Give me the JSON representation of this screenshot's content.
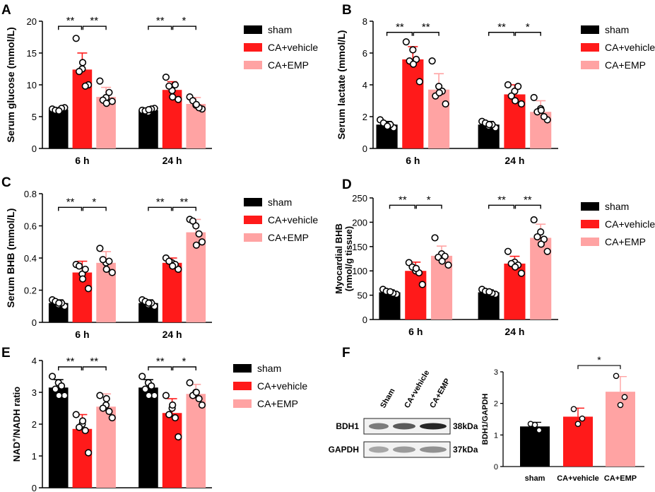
{
  "colors": {
    "sham": "#000000",
    "vehicle": "#ff1a1a",
    "emp": "#ffa3a3",
    "axis": "#000000"
  },
  "legend": [
    "sham",
    "CA+vehicle",
    "CA+EMP"
  ],
  "panels": [
    {
      "letter": "A",
      "chart_data": {
        "type": "bar",
        "ylabel": "Serum glucose (mmol/L)",
        "categories": [
          "6 h",
          "24 h"
        ],
        "ylim": [
          0,
          20
        ],
        "yticks": [
          0,
          5,
          10,
          15,
          20
        ],
        "series": [
          {
            "name": "sham",
            "values": [
              6.1,
              6.0
            ],
            "errors": [
              0.3,
              0.3
            ],
            "points": [
              [
                6.2,
                5.8,
                6.4,
                6.0,
                6.3,
                5.9
              ],
              [
                6.0,
                5.7,
                6.3,
                5.9,
                6.2,
                6.1
              ]
            ]
          },
          {
            "name": "CA+vehicle",
            "values": [
              12.4,
              9.2
            ],
            "errors": [
              2.6,
              1.3
            ],
            "points": [
              [
                17.3,
                12.5,
                10.0,
                12.1,
                9.8,
                13.5
              ],
              [
                11.2,
                9.1,
                7.7,
                9.8,
                10.0,
                8.1
              ]
            ]
          },
          {
            "name": "CA+EMP",
            "values": [
              8.1,
              7.0
            ],
            "errors": [
              1.5,
              1.0
            ],
            "points": [
              [
                10.6,
                8.0,
                7.4,
                7.6,
                8.8,
                7.1
              ],
              [
                8.1,
                6.8,
                6.2,
                7.5,
                6.4,
                6.9
              ]
            ]
          }
        ],
        "significance": [
          {
            "group": 0,
            "from": 0,
            "to": 1,
            "label": "**",
            "y": 19.2
          },
          {
            "group": 0,
            "from": 1,
            "to": 2,
            "label": "**",
            "y": 19.2
          },
          {
            "group": 1,
            "from": 0,
            "to": 1,
            "label": "**",
            "y": 19.2
          },
          {
            "group": 1,
            "from": 1,
            "to": 2,
            "label": "*",
            "y": 19.2
          }
        ]
      }
    },
    {
      "letter": "B",
      "chart_data": {
        "type": "bar",
        "ylabel": "Serum lactate (mmol/L)",
        "categories": [
          "6 h",
          "24 h"
        ],
        "ylim": [
          0,
          8
        ],
        "yticks": [
          0,
          2,
          4,
          6,
          8
        ],
        "series": [
          {
            "name": "sham",
            "values": [
              1.5,
              1.5
            ],
            "errors": [
              0.2,
              0.2
            ],
            "points": [
              [
                1.8,
                1.4,
                1.3,
                1.6,
                1.5,
                1.4
              ],
              [
                1.7,
                1.4,
                1.3,
                1.6,
                1.5,
                1.5
              ]
            ]
          },
          {
            "name": "CA+vehicle",
            "values": [
              5.6,
              3.4
            ],
            "errors": [
              0.8,
              0.6
            ],
            "points": [
              [
                6.7,
                6.2,
                4.2,
                5.5,
                5.6,
                5.3
              ],
              [
                4.0,
                3.6,
                2.8,
                3.3,
                3.9,
                3.0
              ]
            ]
          },
          {
            "name": "CA+EMP",
            "values": [
              3.7,
              2.3
            ],
            "errors": [
              1.0,
              0.7
            ],
            "points": [
              [
                5.5,
                3.9,
                2.8,
                3.3,
                3.6,
                3.5
              ],
              [
                3.2,
                2.5,
                1.8,
                2.3,
                2.0,
                2.4
              ]
            ]
          }
        ],
        "significance": [
          {
            "group": 0,
            "from": 0,
            "to": 1,
            "label": "**",
            "y": 7.3
          },
          {
            "group": 0,
            "from": 1,
            "to": 2,
            "label": "**",
            "y": 7.3
          },
          {
            "group": 1,
            "from": 0,
            "to": 1,
            "label": "**",
            "y": 7.3
          },
          {
            "group": 1,
            "from": 1,
            "to": 2,
            "label": "*",
            "y": 7.3
          }
        ]
      }
    },
    {
      "letter": "C",
      "chart_data": {
        "type": "bar",
        "ylabel": "Serum BHB (mmol/L)",
        "categories": [
          "6 h",
          "24 h"
        ],
        "ylim": [
          0,
          0.8
        ],
        "yticks": [
          0,
          0.2,
          0.4,
          0.6,
          0.8
        ],
        "series": [
          {
            "name": "sham",
            "values": [
              0.12,
              0.12
            ],
            "errors": [
              0.02,
              0.02
            ],
            "points": [
              [
                0.14,
                0.11,
                0.1,
                0.13,
                0.12,
                0.12
              ],
              [
                0.14,
                0.11,
                0.1,
                0.13,
                0.12,
                0.12
              ]
            ]
          },
          {
            "name": "CA+vehicle",
            "values": [
              0.31,
              0.37
            ],
            "errors": [
              0.07,
              0.03
            ],
            "points": [
              [
                0.36,
                0.3,
                0.21,
                0.35,
                0.33,
                0.27
              ],
              [
                0.4,
                0.37,
                0.33,
                0.38,
                0.36,
                0.35
              ]
            ]
          },
          {
            "name": "CA+EMP",
            "values": [
              0.37,
              0.56
            ],
            "errors": [
              0.07,
              0.08
            ],
            "points": [
              [
                0.46,
                0.37,
                0.31,
                0.39,
                0.38,
                0.33
              ],
              [
                0.64,
                0.6,
                0.5,
                0.63,
                0.55,
                0.48
              ]
            ]
          }
        ],
        "significance": [
          {
            "group": 0,
            "from": 0,
            "to": 1,
            "label": "**",
            "y": 0.715
          },
          {
            "group": 0,
            "from": 1,
            "to": 2,
            "label": "*",
            "y": 0.715
          },
          {
            "group": 1,
            "from": 0,
            "to": 1,
            "label": "**",
            "y": 0.715
          },
          {
            "group": 1,
            "from": 1,
            "to": 2,
            "label": "**",
            "y": 0.715
          }
        ]
      }
    },
    {
      "letter": "D",
      "chart_data": {
        "type": "bar",
        "ylabel": "Myocardial BHB",
        "ylabel2": "(nmol/g tissue)",
        "categories": [
          "6 h",
          "24 h"
        ],
        "ylim": [
          0,
          250
        ],
        "yticks": [
          0,
          50,
          100,
          150,
          200,
          250
        ],
        "series": [
          {
            "name": "sham",
            "values": [
              56,
              56
            ],
            "errors": [
              5,
              5
            ],
            "points": [
              [
                62,
                55,
                52,
                58,
                54,
                57
              ],
              [
                62,
                55,
                52,
                58,
                54,
                57
              ]
            ]
          },
          {
            "name": "CA+vehicle",
            "values": [
              100,
              115
            ],
            "errors": [
              18,
              15
            ],
            "points": [
              [
                117,
                100,
                72,
                108,
                96,
                105
              ],
              [
                140,
                118,
                95,
                115,
                112,
                108
              ]
            ]
          },
          {
            "name": "CA+EMP",
            "values": [
              131,
              168
            ],
            "errors": [
              20,
              28
            ],
            "points": [
              [
                168,
                135,
                112,
                128,
                130,
                120
              ],
              [
                205,
                180,
                140,
                170,
                165,
                155
              ]
            ]
          }
        ],
        "significance": [
          {
            "group": 0,
            "from": 0,
            "to": 1,
            "label": "**",
            "y": 235
          },
          {
            "group": 0,
            "from": 1,
            "to": 2,
            "label": "*",
            "y": 235
          },
          {
            "group": 1,
            "from": 0,
            "to": 1,
            "label": "**",
            "y": 235
          },
          {
            "group": 1,
            "from": 1,
            "to": 2,
            "label": "**",
            "y": 235
          }
        ]
      }
    },
    {
      "letter": "E",
      "chart_data": {
        "type": "bar",
        "ylabel": "NAD",
        "ylabel_sup": "+",
        "ylabel_rest": "/NADH ratio",
        "categories": [
          "6 h",
          "24 h"
        ],
        "ylim": [
          0,
          4
        ],
        "yticks": [
          0,
          1,
          2,
          3,
          4
        ],
        "series": [
          {
            "name": "sham",
            "values": [
              3.15,
              3.15
            ],
            "errors": [
              0.25,
              0.25
            ],
            "points": [
              [
                3.5,
                3.3,
                2.9,
                3.1,
                3.2,
                2.9
              ],
              [
                3.5,
                3.3,
                2.9,
                3.1,
                3.2,
                2.9
              ]
            ]
          },
          {
            "name": "CA+vehicle",
            "values": [
              1.85,
              2.35
            ],
            "errors": [
              0.45,
              0.45
            ],
            "points": [
              [
                2.3,
                2.0,
                1.1,
                1.9,
                1.8,
                2.1
              ],
              [
                2.9,
                2.5,
                1.6,
                2.3,
                2.2,
                2.6
              ]
            ]
          },
          {
            "name": "CA+EMP",
            "values": [
              2.55,
              2.95
            ],
            "errors": [
              0.4,
              0.3
            ],
            "points": [
              [
                2.9,
                2.6,
                2.2,
                2.5,
                2.4,
                2.8
              ],
              [
                3.3,
                3.0,
                2.6,
                2.9,
                2.8,
                3.0
              ]
            ]
          }
        ],
        "significance": [
          {
            "group": 0,
            "from": 0,
            "to": 1,
            "label": "**",
            "y": 3.8
          },
          {
            "group": 0,
            "from": 1,
            "to": 2,
            "label": "**",
            "y": 3.8
          },
          {
            "group": 1,
            "from": 0,
            "to": 1,
            "label": "**",
            "y": 3.8
          },
          {
            "group": 1,
            "from": 1,
            "to": 2,
            "label": "*",
            "y": 3.8
          }
        ]
      }
    }
  ],
  "panelF": {
    "letter": "F",
    "blot": {
      "lanes": [
        "Sham",
        "CA+vehicle",
        "CA+EMP"
      ],
      "rows": [
        {
          "label": "BDH1",
          "mw": "38kDa"
        },
        {
          "label": "GAPDH",
          "mw": "37kDa"
        }
      ]
    },
    "chart_data": {
      "type": "bar",
      "ylabel": "BDH1/GAPDH",
      "categories": [
        "sham",
        "CA+vehicle",
        "CA+EMP"
      ],
      "ylim": [
        0,
        3
      ],
      "yticks": [
        0,
        1,
        2,
        3
      ],
      "values": [
        1.27,
        1.58,
        2.37
      ],
      "errors": [
        0.13,
        0.27,
        0.48
      ],
      "points": [
        [
          1.35,
          1.32,
          1.15
        ],
        [
          1.82,
          1.35,
          1.52
        ],
        [
          2.87,
          1.95,
          2.2
        ]
      ],
      "significance": [
        {
          "from": 1,
          "to": 2,
          "label": "*",
          "y": 3.2
        }
      ]
    }
  }
}
